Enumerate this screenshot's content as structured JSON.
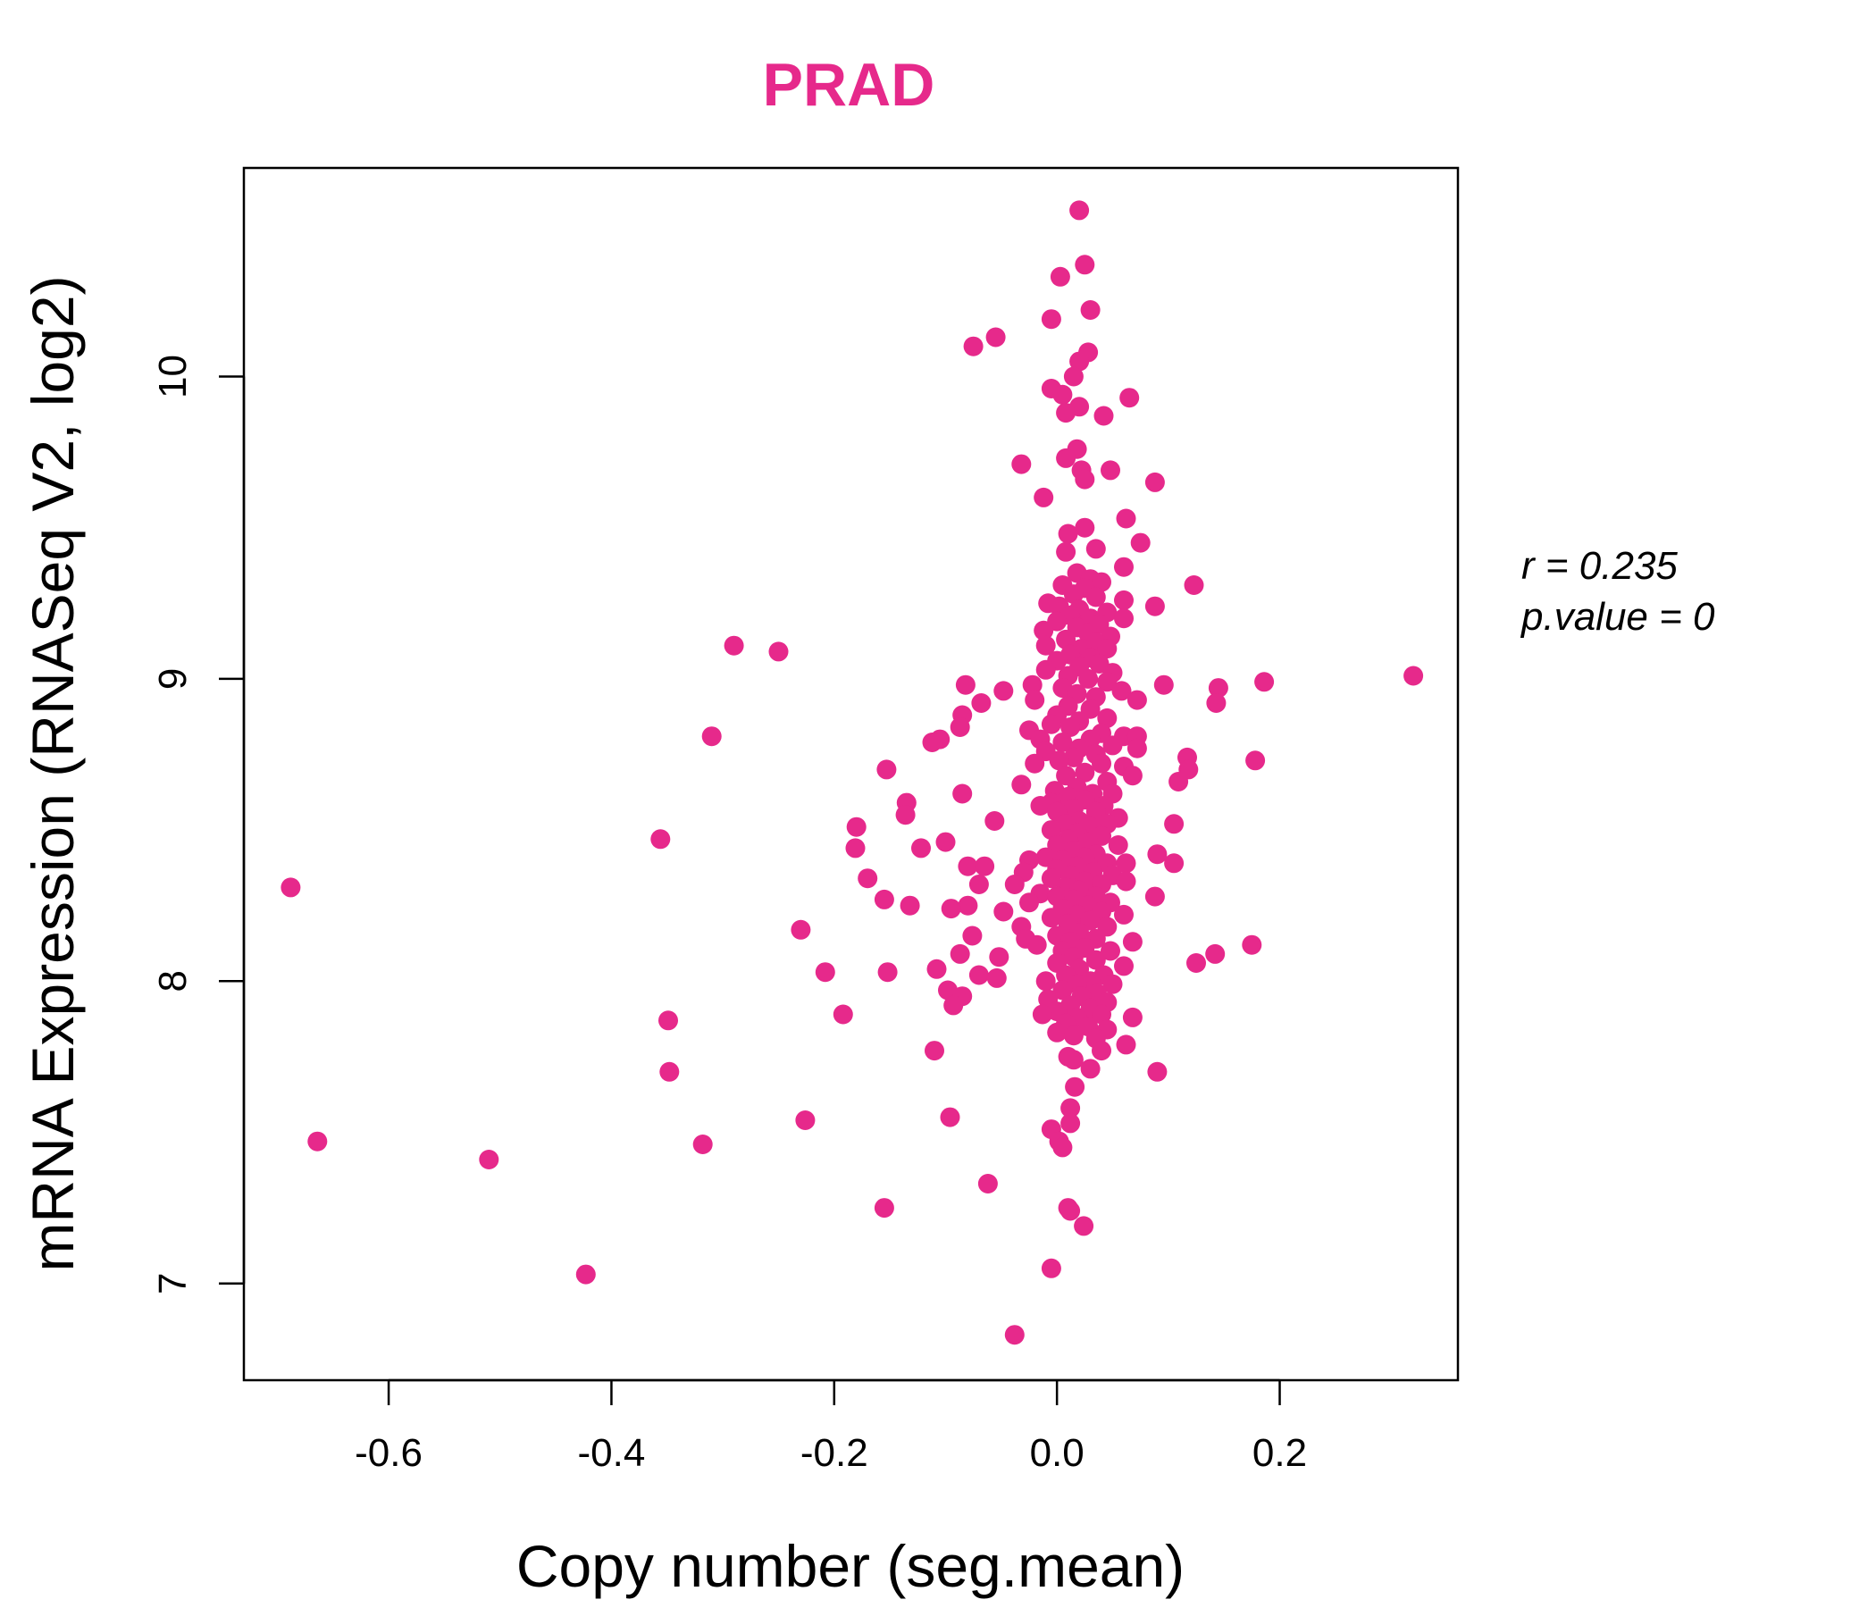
{
  "chart_data": {
    "type": "scatter",
    "title": "PRAD",
    "xlabel": "Copy number (seg.mean)",
    "ylabel": "mRNA Expression (RNASeq V2, log2)",
    "xlim": [
      -0.73,
      0.36
    ],
    "ylim": [
      6.68,
      10.69
    ],
    "x_ticks": [
      -0.6,
      -0.4,
      -0.2,
      0.0,
      0.2
    ],
    "x_tick_labels": [
      "-0.6",
      "-0.4",
      "-0.2",
      "0.0",
      "0.2"
    ],
    "y_ticks": [
      7,
      8,
      9,
      10
    ],
    "y_tick_labels": [
      "7",
      "8",
      "9",
      "10"
    ],
    "grid": false,
    "stats": {
      "r": "r = 0.235",
      "p": "p.value = 0"
    },
    "colors": {
      "points": "#E6298B",
      "title": "#E6298B",
      "axes": "#000000"
    },
    "points": [
      [
        0.02,
        10.55
      ],
      [
        0.025,
        10.37
      ],
      [
        0.003,
        10.33
      ],
      [
        0.03,
        10.22
      ],
      [
        -0.005,
        10.19
      ],
      [
        -0.055,
        10.13
      ],
      [
        -0.075,
        10.1
      ],
      [
        0.028,
        10.08
      ],
      [
        0.02,
        10.05
      ],
      [
        0.015,
        10.0
      ],
      [
        -0.005,
        9.96
      ],
      [
        0.005,
        9.94
      ],
      [
        0.065,
        9.93
      ],
      [
        0.02,
        9.9
      ],
      [
        0.008,
        9.88
      ],
      [
        0.042,
        9.87
      ],
      [
        0.018,
        9.76
      ],
      [
        0.008,
        9.73
      ],
      [
        -0.032,
        9.71
      ],
      [
        0.022,
        9.69
      ],
      [
        0.048,
        9.69
      ],
      [
        0.025,
        9.66
      ],
      [
        0.088,
        9.65
      ],
      [
        -0.012,
        9.6
      ],
      [
        0.062,
        9.53
      ],
      [
        0.025,
        9.5
      ],
      [
        0.01,
        9.48
      ],
      [
        0.075,
        9.45
      ],
      [
        0.035,
        9.43
      ],
      [
        0.008,
        9.42
      ],
      [
        0.06,
        9.37
      ],
      [
        0.018,
        9.35
      ],
      [
        0.03,
        9.33
      ],
      [
        0.04,
        9.32
      ],
      [
        0.005,
        9.31
      ],
      [
        0.123,
        9.31
      ],
      [
        0.025,
        9.3
      ],
      [
        0.015,
        9.28
      ],
      [
        0.035,
        9.27
      ],
      [
        0.06,
        9.26
      ],
      [
        -0.008,
        9.25
      ],
      [
        0.002,
        9.24
      ],
      [
        0.088,
        9.24
      ],
      [
        0.02,
        9.23
      ],
      [
        0.045,
        9.22
      ],
      [
        0.012,
        9.21
      ],
      [
        0.03,
        9.2
      ],
      [
        0.06,
        9.2
      ],
      [
        0.0,
        9.19
      ],
      [
        0.038,
        9.18
      ],
      [
        0.018,
        9.17
      ],
      [
        -0.012,
        9.16
      ],
      [
        0.028,
        9.15
      ],
      [
        0.048,
        9.14
      ],
      [
        0.008,
        9.13
      ],
      [
        0.035,
        9.12
      ],
      [
        -0.01,
        9.11
      ],
      [
        0.022,
        9.1
      ],
      [
        0.045,
        9.1
      ],
      [
        -0.29,
        9.11
      ],
      [
        -0.25,
        9.09
      ],
      [
        0.012,
        9.08
      ],
      [
        0.03,
        9.07
      ],
      [
        0.0,
        9.06
      ],
      [
        0.038,
        9.05
      ],
      [
        0.02,
        9.04
      ],
      [
        0.05,
        9.02
      ],
      [
        -0.01,
        9.03
      ],
      [
        0.01,
        9.01
      ],
      [
        0.32,
        9.01
      ],
      [
        0.028,
        9.0
      ],
      [
        0.186,
        8.99
      ],
      [
        0.045,
        8.99
      ],
      [
        0.096,
        8.98
      ],
      [
        -0.082,
        8.98
      ],
      [
        -0.022,
        8.98
      ],
      [
        0.145,
        8.97
      ],
      [
        0.005,
        8.97
      ],
      [
        -0.048,
        8.96
      ],
      [
        0.058,
        8.96
      ],
      [
        0.018,
        8.95
      ],
      [
        0.035,
        8.94
      ],
      [
        -0.02,
        8.93
      ],
      [
        0.072,
        8.93
      ],
      [
        0.143,
        8.92
      ],
      [
        -0.068,
        8.92
      ],
      [
        0.01,
        8.91
      ],
      [
        0.03,
        8.9
      ],
      [
        -0.085,
        8.88
      ],
      [
        0.0,
        8.88
      ],
      [
        0.045,
        8.87
      ],
      [
        0.02,
        8.86
      ],
      [
        -0.005,
        8.85
      ],
      [
        0.012,
        8.84
      ],
      [
        -0.087,
        8.84
      ],
      [
        -0.025,
        8.83
      ],
      [
        0.04,
        8.82
      ],
      [
        -0.31,
        8.81
      ],
      [
        0.06,
        8.81
      ],
      [
        0.072,
        8.81
      ],
      [
        0.03,
        8.8
      ],
      [
        -0.015,
        8.8
      ],
      [
        -0.105,
        8.8
      ],
      [
        -0.112,
        8.79
      ],
      [
        0.005,
        8.79
      ],
      [
        0.05,
        8.78
      ],
      [
        0.02,
        8.77
      ],
      [
        0.072,
        8.77
      ],
      [
        -0.01,
        8.76
      ],
      [
        0.035,
        8.75
      ],
      [
        0.015,
        8.74
      ],
      [
        0.117,
        8.74
      ],
      [
        0.002,
        8.73
      ],
      [
        0.178,
        8.73
      ],
      [
        -0.02,
        8.72
      ],
      [
        0.04,
        8.72
      ],
      [
        0.06,
        8.71
      ],
      [
        -0.153,
        8.7
      ],
      [
        0.118,
        8.7
      ],
      [
        0.025,
        8.69
      ],
      [
        0.068,
        8.68
      ],
      [
        0.008,
        8.68
      ],
      [
        0.109,
        8.66
      ],
      [
        0.045,
        8.66
      ],
      [
        -0.032,
        8.65
      ],
      [
        0.018,
        8.64
      ],
      [
        -0.002,
        8.63
      ],
      [
        0.032,
        8.62
      ],
      [
        0.05,
        8.62
      ],
      [
        -0.085,
        8.62
      ],
      [
        0.01,
        8.61
      ],
      [
        0.025,
        8.6
      ],
      [
        -0.005,
        8.59
      ],
      [
        -0.135,
        8.59
      ],
      [
        0.042,
        8.58
      ],
      [
        -0.015,
        8.58
      ],
      [
        0.015,
        8.57
      ],
      [
        0.035,
        8.56
      ],
      [
        0.0,
        8.56
      ],
      [
        -0.136,
        8.55
      ],
      [
        0.055,
        8.54
      ],
      [
        0.02,
        8.53
      ],
      [
        -0.056,
        8.53
      ],
      [
        0.008,
        8.52
      ],
      [
        0.045,
        8.52
      ],
      [
        0.105,
        8.52
      ],
      [
        0.03,
        8.51
      ],
      [
        -0.18,
        8.51
      ],
      [
        -0.005,
        8.5
      ],
      [
        0.018,
        8.49
      ],
      [
        0.04,
        8.48
      ],
      [
        -0.356,
        8.47
      ],
      [
        0.01,
        8.47
      ],
      [
        -0.1,
        8.46
      ],
      [
        0.028,
        8.46
      ],
      [
        0.055,
        8.45
      ],
      [
        0.0,
        8.45
      ],
      [
        -0.181,
        8.44
      ],
      [
        -0.122,
        8.44
      ],
      [
        0.015,
        8.43
      ],
      [
        0.035,
        8.42
      ],
      [
        0.09,
        8.42
      ],
      [
        -0.01,
        8.41
      ],
      [
        0.025,
        8.41
      ],
      [
        0.005,
        8.4
      ],
      [
        -0.025,
        8.4
      ],
      [
        0.045,
        8.39
      ],
      [
        0.105,
        8.39
      ],
      [
        0.062,
        8.39
      ],
      [
        0.018,
        8.38
      ],
      [
        -0.08,
        8.38
      ],
      [
        0.0,
        8.37
      ],
      [
        -0.065,
        8.38
      ],
      [
        0.032,
        8.36
      ],
      [
        -0.03,
        8.36
      ],
      [
        0.012,
        8.35
      ],
      [
        0.05,
        8.35
      ],
      [
        -0.17,
        8.34
      ],
      [
        -0.005,
        8.34
      ],
      [
        0.025,
        8.33
      ],
      [
        0.062,
        8.33
      ],
      [
        -0.07,
        8.32
      ],
      [
        0.04,
        8.32
      ],
      [
        -0.038,
        8.32
      ],
      [
        0.008,
        8.31
      ],
      [
        -0.688,
        8.31
      ],
      [
        0.02,
        8.3
      ],
      [
        -0.015,
        8.29
      ],
      [
        0.035,
        8.28
      ],
      [
        0.0,
        8.28
      ],
      [
        0.088,
        8.28
      ],
      [
        -0.155,
        8.27
      ],
      [
        0.015,
        8.27
      ],
      [
        0.048,
        8.26
      ],
      [
        -0.025,
        8.26
      ],
      [
        -0.132,
        8.25
      ],
      [
        0.028,
        8.25
      ],
      [
        0.005,
        8.24
      ],
      [
        -0.08,
        8.25
      ],
      [
        -0.095,
        8.24
      ],
      [
        0.04,
        8.23
      ],
      [
        -0.048,
        8.23
      ],
      [
        0.018,
        8.22
      ],
      [
        0.06,
        8.22
      ],
      [
        -0.005,
        8.21
      ],
      [
        0.03,
        8.2
      ],
      [
        0.01,
        8.19
      ],
      [
        -0.032,
        8.18
      ],
      [
        0.045,
        8.18
      ],
      [
        -0.23,
        8.17
      ],
      [
        0.02,
        8.16
      ],
      [
        -0.076,
        8.15
      ],
      [
        0.0,
        8.15
      ],
      [
        0.035,
        8.14
      ],
      [
        -0.028,
        8.14
      ],
      [
        0.012,
        8.13
      ],
      [
        0.068,
        8.13
      ],
      [
        0.175,
        8.12
      ],
      [
        -0.018,
        8.12
      ],
      [
        0.025,
        8.11
      ],
      [
        0.005,
        8.1
      ],
      [
        0.048,
        8.1
      ],
      [
        -0.087,
        8.09
      ],
      [
        0.142,
        8.09
      ],
      [
        0.015,
        8.08
      ],
      [
        -0.052,
        8.08
      ],
      [
        0.035,
        8.07
      ],
      [
        0.125,
        8.06
      ],
      [
        0.0,
        8.06
      ],
      [
        0.06,
        8.05
      ],
      [
        -0.108,
        8.04
      ],
      [
        0.02,
        8.04
      ],
      [
        -0.208,
        8.03
      ],
      [
        -0.152,
        8.03
      ],
      [
        0.042,
        8.02
      ],
      [
        0.008,
        8.02
      ],
      [
        -0.07,
        8.02
      ],
      [
        -0.054,
        8.01
      ],
      [
        0.03,
        8.0
      ],
      [
        -0.01,
        8.0
      ],
      [
        0.018,
        7.99
      ],
      [
        0.05,
        7.99
      ],
      [
        -0.098,
        7.97
      ],
      [
        0.005,
        7.97
      ],
      [
        0.036,
        7.96
      ],
      [
        -0.085,
        7.95
      ],
      [
        0.022,
        7.95
      ],
      [
        -0.008,
        7.94
      ],
      [
        0.045,
        7.93
      ],
      [
        0.012,
        7.92
      ],
      [
        -0.093,
        7.92
      ],
      [
        0.03,
        7.91
      ],
      [
        0.0,
        7.9
      ],
      [
        -0.192,
        7.89
      ],
      [
        0.04,
        7.89
      ],
      [
        -0.013,
        7.89
      ],
      [
        0.018,
        7.88
      ],
      [
        0.068,
        7.88
      ],
      [
        -0.349,
        7.87
      ],
      [
        0.008,
        7.86
      ],
      [
        0.028,
        7.85
      ],
      [
        0.045,
        7.84
      ],
      [
        0.0,
        7.83
      ],
      [
        0.015,
        7.82
      ],
      [
        0.035,
        7.81
      ],
      [
        0.062,
        7.79
      ],
      [
        -0.11,
        7.77
      ],
      [
        0.04,
        7.77
      ],
      [
        0.01,
        7.75
      ],
      [
        0.015,
        7.74
      ],
      [
        0.03,
        7.71
      ],
      [
        0.09,
        7.7
      ],
      [
        -0.348,
        7.7
      ],
      [
        0.016,
        7.65
      ],
      [
        0.012,
        7.58
      ],
      [
        -0.096,
        7.55
      ],
      [
        -0.226,
        7.54
      ],
      [
        0.012,
        7.53
      ],
      [
        -0.005,
        7.51
      ],
      [
        0.002,
        7.47
      ],
      [
        -0.664,
        7.47
      ],
      [
        -0.318,
        7.46
      ],
      [
        0.005,
        7.45
      ],
      [
        -0.51,
        7.41
      ],
      [
        -0.062,
        7.33
      ],
      [
        -0.155,
        7.25
      ],
      [
        0.01,
        7.25
      ],
      [
        0.012,
        7.24
      ],
      [
        0.024,
        7.19
      ],
      [
        -0.005,
        7.05
      ],
      [
        -0.423,
        7.03
      ],
      [
        -0.038,
        6.83
      ]
    ]
  }
}
